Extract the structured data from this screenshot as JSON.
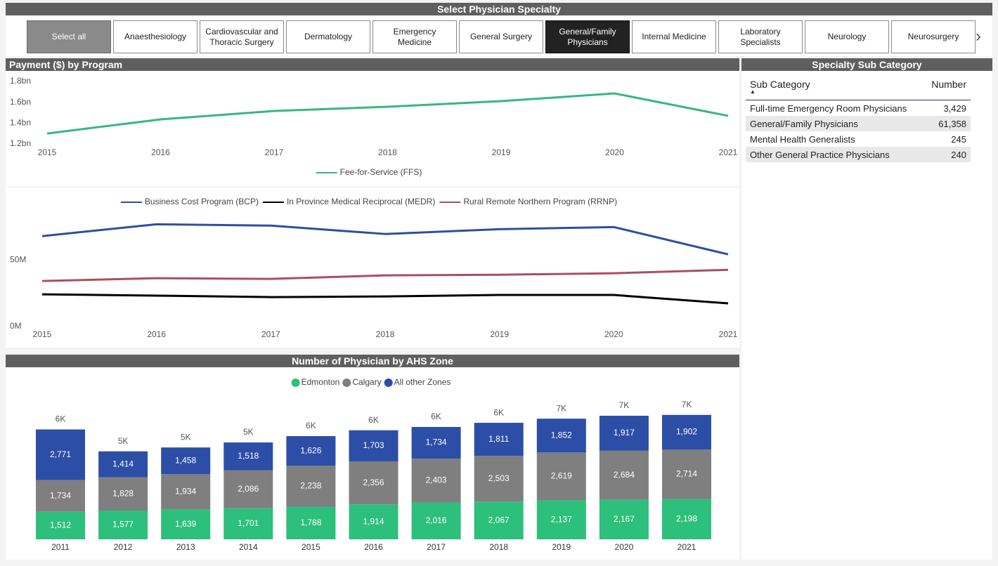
{
  "slicer": {
    "title": "Select Physician Specialty",
    "options": [
      "Select all",
      "Anaesthesiology",
      "Cardiovascular and Thoracic Surgery",
      "Dermatology",
      "Emergency Medicine",
      "General Surgery",
      "General/Family Physicians",
      "Internal Medicine",
      "Laboratory Specialists",
      "Neurology",
      "Neurosurgery"
    ],
    "selected": 6
  },
  "table": {
    "title": "Specialty Sub Category",
    "columns": [
      "Sub Category",
      "Number"
    ],
    "rows": [
      [
        "Full-time Emergency Room Physicians",
        "3,429"
      ],
      [
        "General/Family Physicians",
        "61,358"
      ],
      [
        "Mental Health Generalists",
        "245"
      ],
      [
        "Other General Practice Physicians",
        "240"
      ]
    ]
  },
  "chart_data": [
    {
      "type": "line",
      "title": "Payment ($) by Program",
      "categories": [
        "2015",
        "2016",
        "2017",
        "2018",
        "2019",
        "2020",
        "2021"
      ],
      "series": [
        {
          "name": "Fee-for-Service (FFS)",
          "color": "#37b87c",
          "values": [
            1300000000,
            1436000000,
            1517000000,
            1557000000,
            1611000000,
            1685000000,
            1470000000
          ]
        }
      ],
      "ylim": [
        1200000000,
        1800000000
      ],
      "yticks": [
        {
          "value": 1200000000,
          "label": "1.2bn"
        },
        {
          "value": 1400000000,
          "label": "1.4bn"
        },
        {
          "value": 1600000000,
          "label": "1.6bn"
        },
        {
          "value": 1800000000,
          "label": "1.8bn"
        }
      ]
    },
    {
      "type": "line",
      "categories": [
        "2015",
        "2016",
        "2017",
        "2018",
        "2019",
        "2020",
        "2021"
      ],
      "series": [
        {
          "name": "Business Cost Program (BCP)",
          "color": "#2e4f9e",
          "values": [
            67900000,
            76800000,
            75800000,
            69500000,
            73100000,
            74700000,
            54200000
          ]
        },
        {
          "name": "In Province Medical Reciprocal (MEDR)",
          "color": "#000000",
          "values": [
            24200000,
            23200000,
            22100000,
            22600000,
            23700000,
            23700000,
            17400000
          ]
        },
        {
          "name": "Rural Remote Northern Program (RRNP)",
          "color": "#a8505f",
          "values": [
            34200000,
            36300000,
            35800000,
            38400000,
            38900000,
            40000000,
            42600000
          ]
        }
      ],
      "ylim": [
        0,
        87000000
      ],
      "yticks": [
        {
          "value": 0,
          "label": "0M"
        },
        {
          "value": 50000000,
          "label": "50M"
        }
      ]
    },
    {
      "type": "bar",
      "stacked": true,
      "title": "Number of Physician by AHS Zone",
      "categories": [
        "2011",
        "2012",
        "2013",
        "2014",
        "2015",
        "2016",
        "2017",
        "2018",
        "2019",
        "2020",
        "2021"
      ],
      "series": [
        {
          "name": "Edmonton",
          "color": "#2dbf7c",
          "values": [
            1512,
            1577,
            1639,
            1701,
            1788,
            1914,
            2016,
            2067,
            2137,
            2167,
            2198
          ],
          "value_labels": [
            "1,512",
            "1,577",
            "1,639",
            "1,701",
            "1,788",
            "1,914",
            "2,016",
            "2,067",
            "2,137",
            "2,167",
            "2,198"
          ]
        },
        {
          "name": "Calgary",
          "color": "#7f7f7f",
          "values": [
            1734,
            1828,
            1934,
            2086,
            2238,
            2356,
            2403,
            2503,
            2619,
            2684,
            2714
          ],
          "value_labels": [
            "1,734",
            "1,828",
            "1,934",
            "2,086",
            "2,238",
            "2,356",
            "2,403",
            "2,503",
            "2,619",
            "2,684",
            "2,714"
          ]
        },
        {
          "name": "All other Zones",
          "color": "#2c4ea6",
          "values": [
            2771,
            1414,
            1458,
            1518,
            1626,
            1703,
            1734,
            1811,
            1852,
            1917,
            1902
          ],
          "value_labels": [
            "2,771",
            "1,414",
            "1,458",
            "1,518",
            "1,626",
            "1,703",
            "1,734",
            "1,811",
            "1,852",
            "1,917",
            "1,902"
          ]
        }
      ],
      "total_labels": [
        "6K",
        "5K",
        "5K",
        "5K",
        "6K",
        "6K",
        "6K",
        "6K",
        "7K",
        "7K",
        "7K"
      ],
      "ylim": [
        0,
        8000
      ]
    }
  ]
}
